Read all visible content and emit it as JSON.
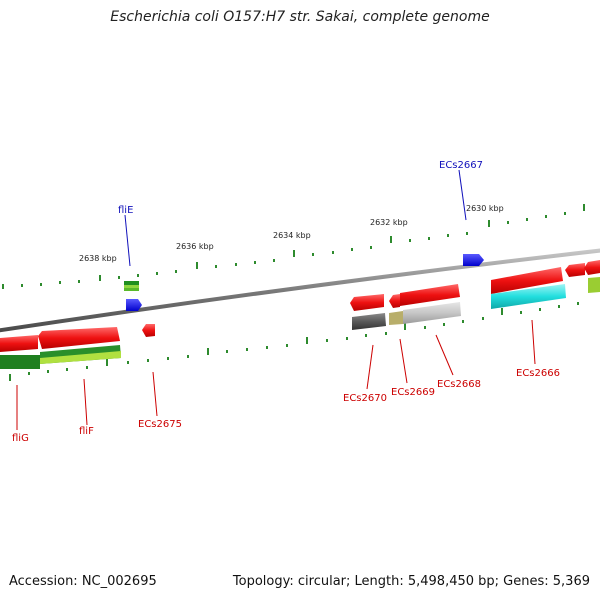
{
  "title": "Escherichia coli O157:H7 str. Sakai, complete genome",
  "footer": {
    "accession": "Accession: NC_002695",
    "topology": "Topology: circular; Length: 5,498,450 bp; Genes: 5,369"
  },
  "colors": {
    "backbone": "#8a8a8a",
    "tick": "#2e8b2e",
    "cds_forward": "#ee1111",
    "cds_reverse": "#ee1111",
    "highlight": "#1a1aff",
    "label_red": "#cc0000",
    "label_blue": "#1111bb"
  },
  "scale_labels": [
    "2638 kbp",
    "2636 kbp",
    "2634 kbp",
    "2632 kbp",
    "2630 kbp"
  ],
  "gene_labels": [
    {
      "name": "fliE",
      "color": "blue"
    },
    {
      "name": "ECs2667",
      "color": "blue"
    },
    {
      "name": "fliG",
      "color": "red"
    },
    {
      "name": "fliF",
      "color": "red"
    },
    {
      "name": "ECs2675",
      "color": "red"
    },
    {
      "name": "ECs2670",
      "color": "red"
    },
    {
      "name": "ECs2669",
      "color": "red"
    },
    {
      "name": "ECs2668",
      "color": "red"
    },
    {
      "name": "ECs2666",
      "color": "red"
    }
  ]
}
